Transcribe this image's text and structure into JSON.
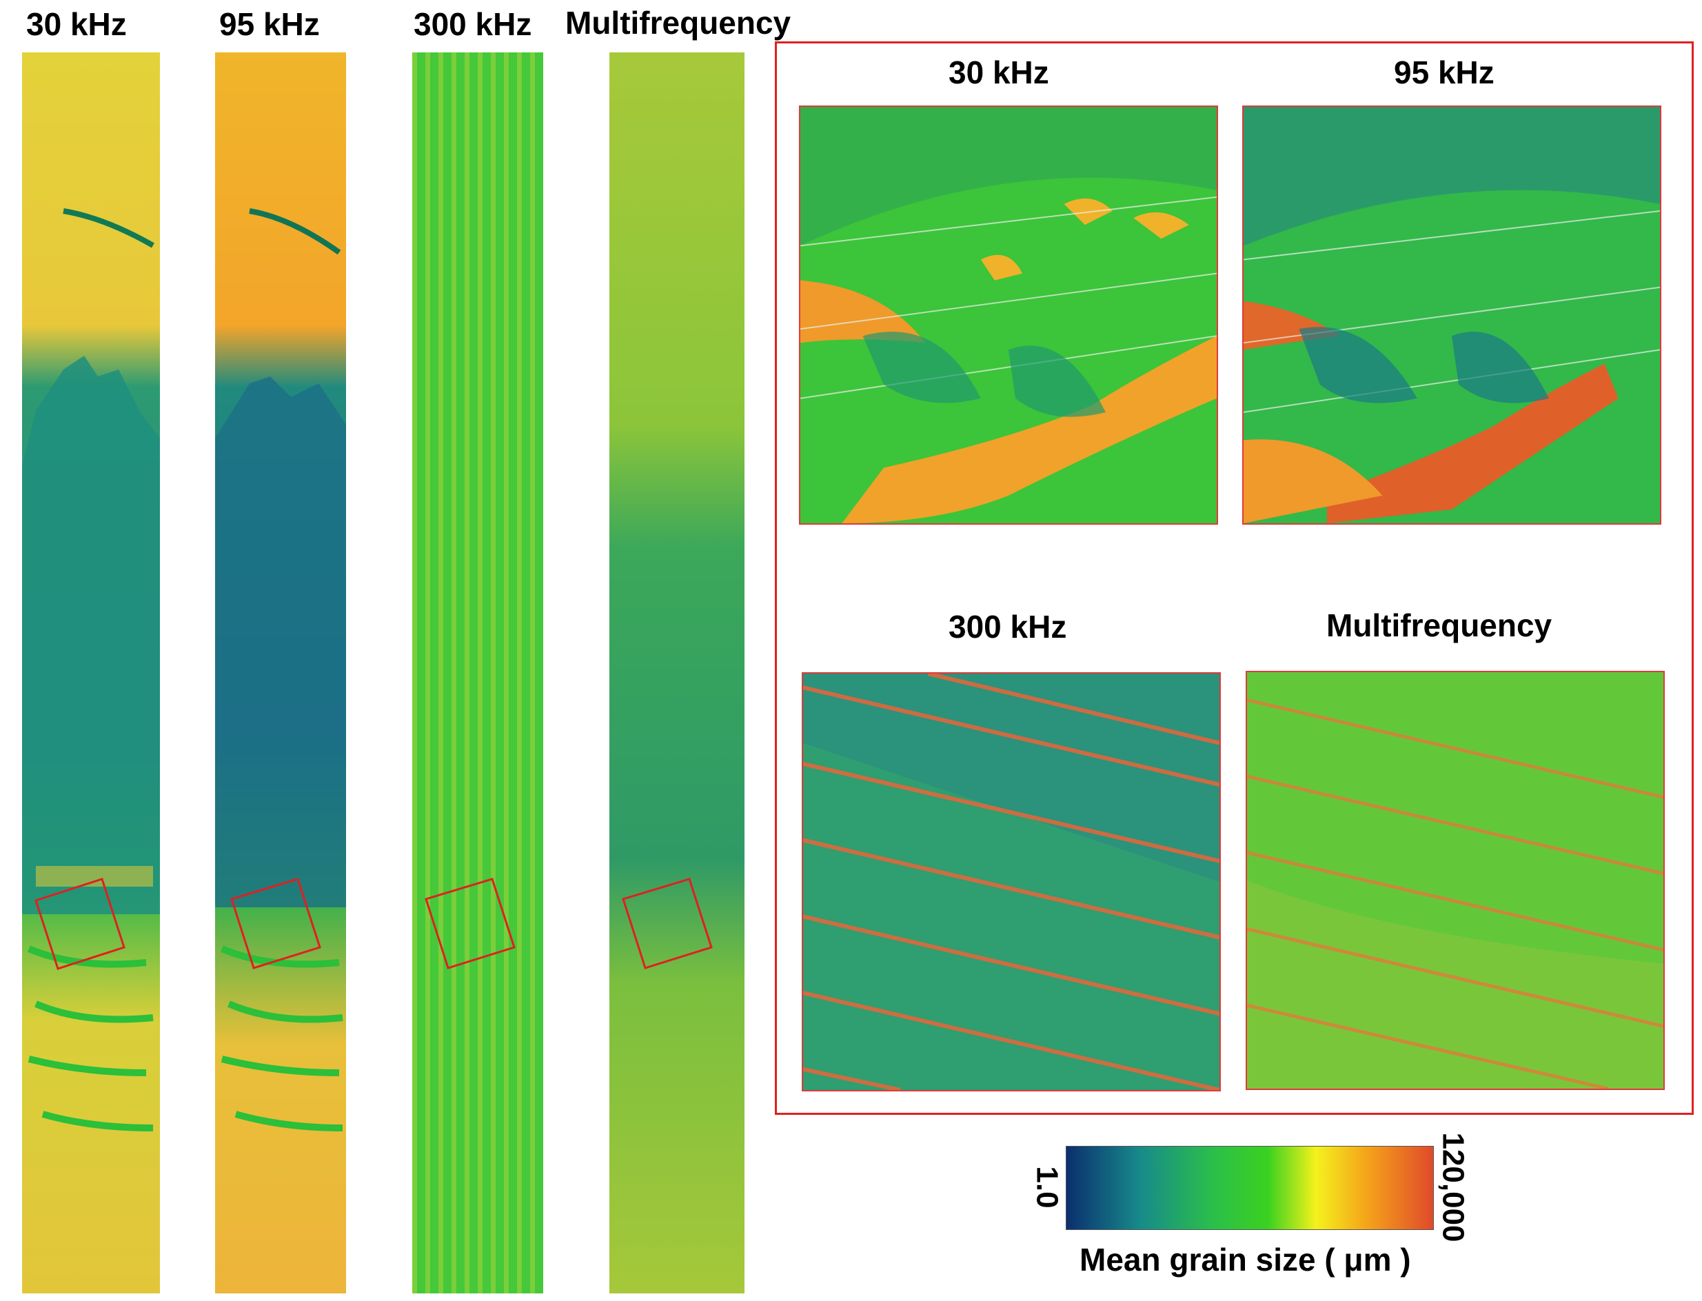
{
  "strip_labels": [
    "30 kHz",
    "95 kHz",
    "300 kHz",
    "Multifrequency"
  ],
  "inset_labels": [
    "30 kHz",
    "95 kHz",
    "300 kHz",
    "Multifrequency"
  ],
  "colorbar": {
    "min_label": "1.0",
    "max_label": "120,000",
    "title": "Mean grain size ( μm )",
    "colors": [
      "#0b2f6e",
      "#178a8a",
      "#2bbf4a",
      "#3bd11f",
      "#f4f21c",
      "#f5a31a",
      "#e04a2a"
    ]
  },
  "colors": {
    "frame_red": "#e02020",
    "green": "#3fcf3a",
    "teal": "#1f9a7a",
    "yellow": "#e8dc3a",
    "orange": "#f2a62a"
  }
}
